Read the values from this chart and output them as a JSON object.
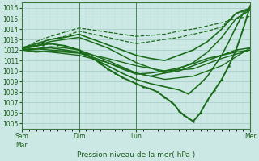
{
  "bg_color": "#cce8e4",
  "grid_major_color": "#aacfca",
  "grid_minor_color": "#bddbd7",
  "line_color": "#1a6b1a",
  "xlim": [
    0,
    96
  ],
  "ylim": [
    1004.5,
    1016.5
  ],
  "yticks": [
    1005,
    1006,
    1007,
    1008,
    1009,
    1010,
    1011,
    1012,
    1013,
    1014,
    1015,
    1016
  ],
  "xtick_positions": [
    0,
    24,
    48,
    96
  ],
  "xtick_labels": [
    "Sam\nMar",
    "Dim",
    "Lun",
    "Mer"
  ],
  "xlabel": "Pression niveau de la mer( hPa )",
  "lines": [
    {
      "x": [
        0,
        6,
        12,
        18,
        24,
        30,
        36,
        42,
        48,
        54,
        60,
        66,
        72,
        78,
        84,
        90,
        96
      ],
      "y": [
        1012.1,
        1012.8,
        1013.3,
        1013.7,
        1014.1,
        1013.9,
        1013.7,
        1013.5,
        1013.3,
        1013.4,
        1013.5,
        1013.8,
        1014.0,
        1014.3,
        1014.6,
        1015.0,
        1015.2
      ],
      "lw": 0.9,
      "style": "--"
    },
    {
      "x": [
        0,
        6,
        12,
        18,
        24,
        30,
        36,
        42,
        48,
        54,
        60,
        66,
        72,
        78,
        84,
        90,
        96
      ],
      "y": [
        1012.1,
        1012.5,
        1013.0,
        1013.3,
        1013.8,
        1013.5,
        1013.2,
        1012.9,
        1012.6,
        1012.8,
        1013.0,
        1013.2,
        1013.5,
        1013.8,
        1014.2,
        1015.5,
        1015.8
      ],
      "lw": 0.9,
      "style": "--"
    },
    {
      "x": [
        0,
        6,
        12,
        18,
        24,
        30,
        36,
        42,
        48,
        54,
        60,
        66,
        72,
        78,
        84,
        90,
        96
      ],
      "y": [
        1012.2,
        1012.6,
        1013.0,
        1013.2,
        1013.5,
        1013.0,
        1012.5,
        1012.0,
        1011.5,
        1011.2,
        1011.0,
        1011.5,
        1012.0,
        1012.8,
        1014.0,
        1015.5,
        1016.0
      ],
      "lw": 1.2,
      "style": "-"
    },
    {
      "x": [
        0,
        6,
        12,
        18,
        24,
        30,
        36,
        42,
        48,
        54,
        60,
        66,
        72,
        78,
        84,
        90,
        96
      ],
      "y": [
        1012.1,
        1012.4,
        1012.8,
        1013.0,
        1013.2,
        1012.7,
        1012.2,
        1011.5,
        1010.8,
        1010.3,
        1009.8,
        1010.2,
        1010.8,
        1011.8,
        1013.2,
        1015.0,
        1015.8
      ],
      "lw": 1.1,
      "style": "-"
    },
    {
      "x": [
        0,
        6,
        12,
        18,
        24,
        30,
        36,
        42,
        48,
        54,
        60,
        66,
        72,
        78,
        84,
        90,
        96
      ],
      "y": [
        1012.0,
        1012.1,
        1012.3,
        1012.2,
        1012.0,
        1011.5,
        1011.0,
        1010.4,
        1009.8,
        1009.5,
        1009.8,
        1010.0,
        1010.5,
        1011.0,
        1011.5,
        1012.0,
        1012.2
      ],
      "lw": 1.1,
      "style": "-"
    },
    {
      "x": [
        0,
        6,
        12,
        18,
        24,
        30,
        36,
        42,
        48,
        54,
        60,
        66,
        72,
        78,
        84,
        90,
        96
      ],
      "y": [
        1012.0,
        1011.8,
        1011.9,
        1011.8,
        1011.7,
        1011.3,
        1010.8,
        1010.2,
        1009.7,
        1009.8,
        1010.0,
        1010.3,
        1010.7,
        1011.2,
        1011.5,
        1011.8,
        1012.0
      ],
      "lw": 1.1,
      "style": "-"
    },
    {
      "x": [
        0,
        3,
        6,
        9,
        12,
        15,
        18,
        21,
        24,
        27,
        30,
        33,
        36,
        39,
        42,
        45,
        48,
        51,
        54,
        57,
        60,
        63,
        64,
        65,
        66,
        68,
        70,
        72,
        75,
        78,
        81,
        84,
        87,
        90,
        93,
        96
      ],
      "y": [
        1012.2,
        1012.3,
        1012.4,
        1012.5,
        1012.6,
        1012.5,
        1012.4,
        1012.2,
        1012.0,
        1011.6,
        1011.2,
        1010.7,
        1010.2,
        1009.8,
        1009.4,
        1009.1,
        1008.8,
        1008.5,
        1008.3,
        1008.0,
        1007.5,
        1007.0,
        1006.8,
        1006.5,
        1006.2,
        1005.8,
        1005.5,
        1005.2,
        1006.0,
        1007.2,
        1008.2,
        1009.2,
        1010.5,
        1012.0,
        1014.0,
        1016.2
      ],
      "lw": 1.4,
      "style": "-",
      "marker": ".",
      "ms": 1.8
    },
    {
      "x": [
        0,
        6,
        12,
        18,
        24,
        30,
        36,
        42,
        48,
        54,
        60,
        66,
        68,
        70,
        72,
        75,
        78,
        81,
        84,
        87,
        90,
        93,
        96
      ],
      "y": [
        1012.0,
        1012.1,
        1012.2,
        1012.0,
        1011.8,
        1011.2,
        1010.5,
        1009.8,
        1009.2,
        1008.8,
        1008.5,
        1008.2,
        1008.0,
        1007.8,
        1008.2,
        1008.8,
        1009.5,
        1010.5,
        1011.5,
        1012.8,
        1014.2,
        1015.5,
        1016.1
      ],
      "lw": 1.2,
      "style": "-"
    },
    {
      "x": [
        0,
        12,
        24,
        36,
        48,
        60,
        72,
        84,
        96
      ],
      "y": [
        1012.2,
        1012.0,
        1011.8,
        1011.2,
        1010.5,
        1010.0,
        1010.2,
        1011.2,
        1012.0
      ],
      "lw": 1.0,
      "style": "-"
    },
    {
      "x": [
        0,
        12,
        24,
        36,
        48,
        60,
        72,
        84,
        96
      ],
      "y": [
        1012.0,
        1011.8,
        1011.5,
        1010.8,
        1009.8,
        1009.2,
        1009.5,
        1010.5,
        1012.2
      ],
      "lw": 1.0,
      "style": "-"
    }
  ]
}
